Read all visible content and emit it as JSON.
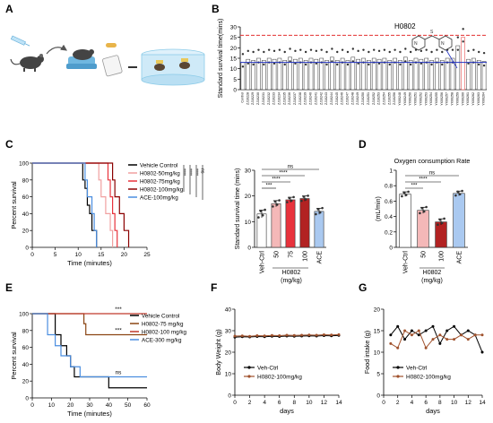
{
  "panel_labels": [
    "A",
    "B",
    "C",
    "D",
    "E",
    "F",
    "G"
  ],
  "chart_data": [
    {
      "panel": "B",
      "type": "bar",
      "ylabel": "Standard survival time(mins)",
      "ylim": [
        0,
        30
      ],
      "yticks": [
        0,
        5,
        10,
        15,
        20,
        25,
        30
      ],
      "categories": [
        "Control",
        "ZJ10228",
        "ZJ10229",
        "ZJ10230",
        "ZJ10231",
        "ZJ10232",
        "ZJ10233",
        "ZJ10234",
        "ZJ10235",
        "ZJ10236",
        "ZJ10237",
        "ZJ10238",
        "ZJ10239",
        "ZJ10240",
        "ZJ10241",
        "ZJ10242",
        "ZJ10243",
        "ZJ10244",
        "ZJ10245",
        "ZJ10246",
        "ZJ10247",
        "ZJ10248",
        "ZJ10249",
        "ZJ10250",
        "ZJ10251",
        "ZJ10252",
        "ZJ10253",
        "ZJ10254",
        "ZJ10255",
        "ZJ10256",
        "YX00248",
        "YX00249",
        "YX00250",
        "YX00251",
        "YX00252",
        "YX00253",
        "YX00254",
        "YX00255",
        "YX00256",
        "YX00257",
        "YX00258",
        "YX00259",
        "YX00260",
        "YX00261",
        "YX00262",
        "YX00263",
        "YX00264"
      ],
      "values": [
        13,
        14.5,
        14,
        15,
        14,
        15,
        14.5,
        15,
        14,
        15.5,
        14.5,
        15,
        14,
        15,
        14.5,
        15,
        14,
        15.5,
        14,
        15,
        14,
        15.5,
        14.5,
        15,
        14,
        15,
        14.5,
        15,
        14,
        15,
        14,
        15.5,
        14,
        15,
        14.5,
        15,
        14,
        15,
        14,
        15,
        15,
        21,
        25,
        14.5,
        15,
        14,
        13.5
      ],
      "highlight": "H0802",
      "reference_lines": [
        {
          "y": 26,
          "style": "red dashed"
        },
        {
          "y": 13,
          "style": "blue solid"
        }
      ]
    },
    {
      "panel": "C-left",
      "type": "line",
      "xlabel": "Time (minutes)",
      "ylabel": "Percent survival",
      "xlim": [
        0,
        25
      ],
      "ylim": [
        0,
        100
      ],
      "xticks": [
        0,
        5,
        10,
        15,
        20,
        25
      ],
      "yticks": [
        0,
        20,
        40,
        60,
        80,
        100
      ],
      "series": [
        {
          "name": "Vehicle Control",
          "color": "#000000",
          "points": [
            [
              0,
              100
            ],
            [
              10.5,
              100
            ],
            [
              11,
              80
            ],
            [
              11.5,
              70
            ],
            [
              12,
              50
            ],
            [
              12.5,
              40
            ],
            [
              13,
              20
            ],
            [
              14,
              0
            ]
          ]
        },
        {
          "name": "H0802-50mg/kg",
          "color": "#f0a0a0",
          "points": [
            [
              0,
              100
            ],
            [
              14,
              100
            ],
            [
              14.5,
              80
            ],
            [
              15,
              60
            ],
            [
              16,
              40
            ],
            [
              17,
              20
            ],
            [
              17.5,
              0
            ]
          ]
        },
        {
          "name": "H0802-75mg/kg",
          "color": "#e8323c",
          "points": [
            [
              0,
              100
            ],
            [
              16,
              100
            ],
            [
              16.5,
              80
            ],
            [
              17,
              60
            ],
            [
              17.5,
              40
            ],
            [
              18,
              20
            ],
            [
              18.5,
              0
            ]
          ]
        },
        {
          "name": "H0802-100mg/kg",
          "color": "#8b0000",
          "points": [
            [
              0,
              100
            ],
            [
              17,
              100
            ],
            [
              17.5,
              80
            ],
            [
              18,
              60
            ],
            [
              19,
              40
            ],
            [
              20,
              20
            ],
            [
              21,
              0
            ]
          ]
        },
        {
          "name": "ACE-100mg/kg",
          "color": "#4b8ee0",
          "points": [
            [
              0,
              100
            ],
            [
              11,
              100
            ],
            [
              11.5,
              80
            ],
            [
              12,
              60
            ],
            [
              13,
              40
            ],
            [
              13.5,
              20
            ],
            [
              14,
              0
            ]
          ]
        }
      ],
      "stats": [
        "****",
        "****",
        "****",
        "ns"
      ]
    },
    {
      "panel": "C-right",
      "type": "bar",
      "ylabel": "Standard survival time (mins)",
      "xlabel": "H0802 (mg/kg)",
      "ylim": [
        0,
        30
      ],
      "yticks": [
        0,
        10,
        20,
        30
      ],
      "categories": [
        "Veh-Ctrl",
        "50",
        "75",
        "100",
        "ACE"
      ],
      "values": [
        13,
        17,
        18.5,
        19,
        14
      ],
      "errors": [
        1.5,
        1.2,
        1,
        1,
        1.2
      ],
      "colors": [
        "#ffffff",
        "#f4b8b8",
        "#e8323c",
        "#b22222",
        "#aac9f0"
      ],
      "comparisons": [
        {
          "label": "***",
          "from": "Veh-Ctrl",
          "to": "50"
        },
        {
          "label": "****",
          "from": "Veh-Ctrl",
          "to": "75"
        },
        {
          "label": "****",
          "from": "Veh-Ctrl",
          "to": "100"
        },
        {
          "label": "ns",
          "from": "Veh-Ctrl",
          "to": "ACE"
        }
      ]
    },
    {
      "panel": "D",
      "type": "bar",
      "title": "Oxygen consumption Rate",
      "ylabel": "(mL/min)",
      "xlabel": "H0802 (mg/kg)",
      "ylim": [
        0,
        1
      ],
      "yticks": [
        0.0,
        0.2,
        0.4,
        0.6,
        0.8,
        1.0
      ],
      "categories": [
        "Veh-Ctrl",
        "50",
        "100",
        "ACE"
      ],
      "values": [
        0.69,
        0.48,
        0.33,
        0.7
      ],
      "errors": [
        0.03,
        0.04,
        0.04,
        0.03
      ],
      "colors": [
        "#ffffff",
        "#f4b8b8",
        "#b22222",
        "#aac9f0"
      ],
      "comparisons": [
        {
          "label": "***",
          "from": "Veh-Ctrl",
          "to": "50"
        },
        {
          "label": "****",
          "from": "Veh-Ctrl",
          "to": "100"
        },
        {
          "label": "ns",
          "from": "Veh-Ctrl",
          "to": "ACE"
        }
      ]
    },
    {
      "panel": "E",
      "type": "line",
      "xlabel": "Time (minutes)",
      "ylabel": "Percent survival",
      "xlim": [
        0,
        60
      ],
      "ylim": [
        0,
        100
      ],
      "xticks": [
        0,
        10,
        20,
        30,
        40,
        50,
        60
      ],
      "yticks": [
        0,
        20,
        40,
        60,
        80,
        100
      ],
      "series": [
        {
          "name": "Vehicle Control",
          "color": "#000000",
          "points": [
            [
              0,
              100
            ],
            [
              10,
              100
            ],
            [
              12,
              75
            ],
            [
              15,
              62
            ],
            [
              18,
              50
            ],
            [
              20,
              37
            ],
            [
              22,
              25
            ],
            [
              40,
              12
            ],
            [
              60,
              12
            ]
          ]
        },
        {
          "name": "H0802-75 mg/kg",
          "color": "#8b4513",
          "points": [
            [
              0,
              100
            ],
            [
              25,
              100
            ],
            [
              27,
              88
            ],
            [
              28,
              75
            ],
            [
              60,
              75
            ]
          ]
        },
        {
          "name": "H0802-100 mg/kg",
          "color": "#c0392b",
          "points": [
            [
              0,
              100
            ],
            [
              60,
              100
            ]
          ]
        },
        {
          "name": "ACE-300 mg/kg",
          "color": "#4b8ee0",
          "points": [
            [
              0,
              100
            ],
            [
              5,
              100
            ],
            [
              8,
              75
            ],
            [
              12,
              62
            ],
            [
              15,
              50
            ],
            [
              20,
              37
            ],
            [
              25,
              25
            ],
            [
              60,
              25
            ]
          ]
        }
      ],
      "stats": [
        "***",
        "***",
        "ns"
      ]
    },
    {
      "panel": "F",
      "type": "line",
      "xlabel": "days",
      "ylabel": "Body Weight (g)",
      "xlim": [
        0,
        14
      ],
      "ylim": [
        0,
        40
      ],
      "xticks": [
        0,
        2,
        4,
        6,
        8,
        10,
        12,
        14
      ],
      "yticks": [
        0,
        10,
        20,
        30,
        40
      ],
      "series": [
        {
          "name": "Veh-Ctrl",
          "color": "#000000",
          "x": [
            0,
            1,
            2,
            3,
            4,
            5,
            6,
            7,
            8,
            9,
            10,
            11,
            12,
            13,
            14
          ],
          "values": [
            27,
            27.2,
            27.1,
            27.3,
            27.2,
            27.4,
            27.3,
            27.5,
            27.4,
            27.5,
            27.6,
            27.5,
            27.7,
            27.6,
            27.8
          ]
        },
        {
          "name": "H0802-100mg/kg",
          "color": "#a0522d",
          "x": [
            0,
            1,
            2,
            3,
            4,
            5,
            6,
            7,
            8,
            9,
            10,
            11,
            12,
            13,
            14
          ],
          "values": [
            27.5,
            27.6,
            27.4,
            27.7,
            27.6,
            27.8,
            27.7,
            27.9,
            27.8,
            27.9,
            28,
            27.9,
            28.1,
            28,
            28.2
          ]
        }
      ]
    },
    {
      "panel": "G",
      "type": "line",
      "xlabel": "days",
      "ylabel": "Food intake (g)",
      "xlim": [
        0,
        14
      ],
      "ylim": [
        0,
        20
      ],
      "xticks": [
        0,
        2,
        4,
        6,
        8,
        10,
        12,
        14
      ],
      "yticks": [
        0,
        5,
        10,
        15,
        20
      ],
      "series": [
        {
          "name": "Veh-Ctrl",
          "color": "#000000",
          "x": [
            1,
            2,
            3,
            4,
            5,
            6,
            7,
            8,
            9,
            10,
            11,
            12,
            13,
            14
          ],
          "values": [
            14,
            16,
            13,
            15,
            14,
            15,
            16,
            12,
            15,
            16,
            14,
            15,
            14,
            10
          ]
        },
        {
          "name": "H0802-100mg/kg",
          "color": "#a0522d",
          "x": [
            1,
            2,
            3,
            4,
            5,
            6,
            7,
            8,
            9,
            10,
            11,
            12,
            13,
            14
          ],
          "values": [
            12,
            11,
            15,
            14,
            15,
            11,
            13,
            14,
            13,
            13,
            14,
            13,
            14,
            14
          ]
        }
      ]
    }
  ],
  "labels": {
    "b_compound": "H0802",
    "c_drug": "H0802",
    "c_unit": "(mg/kg)",
    "d_drug": "H0802",
    "d_unit": "(mg/kg)"
  },
  "colors": {
    "red_line": "#e23030",
    "blue_line": "#2030c0",
    "grid": "#d0d0d0"
  }
}
